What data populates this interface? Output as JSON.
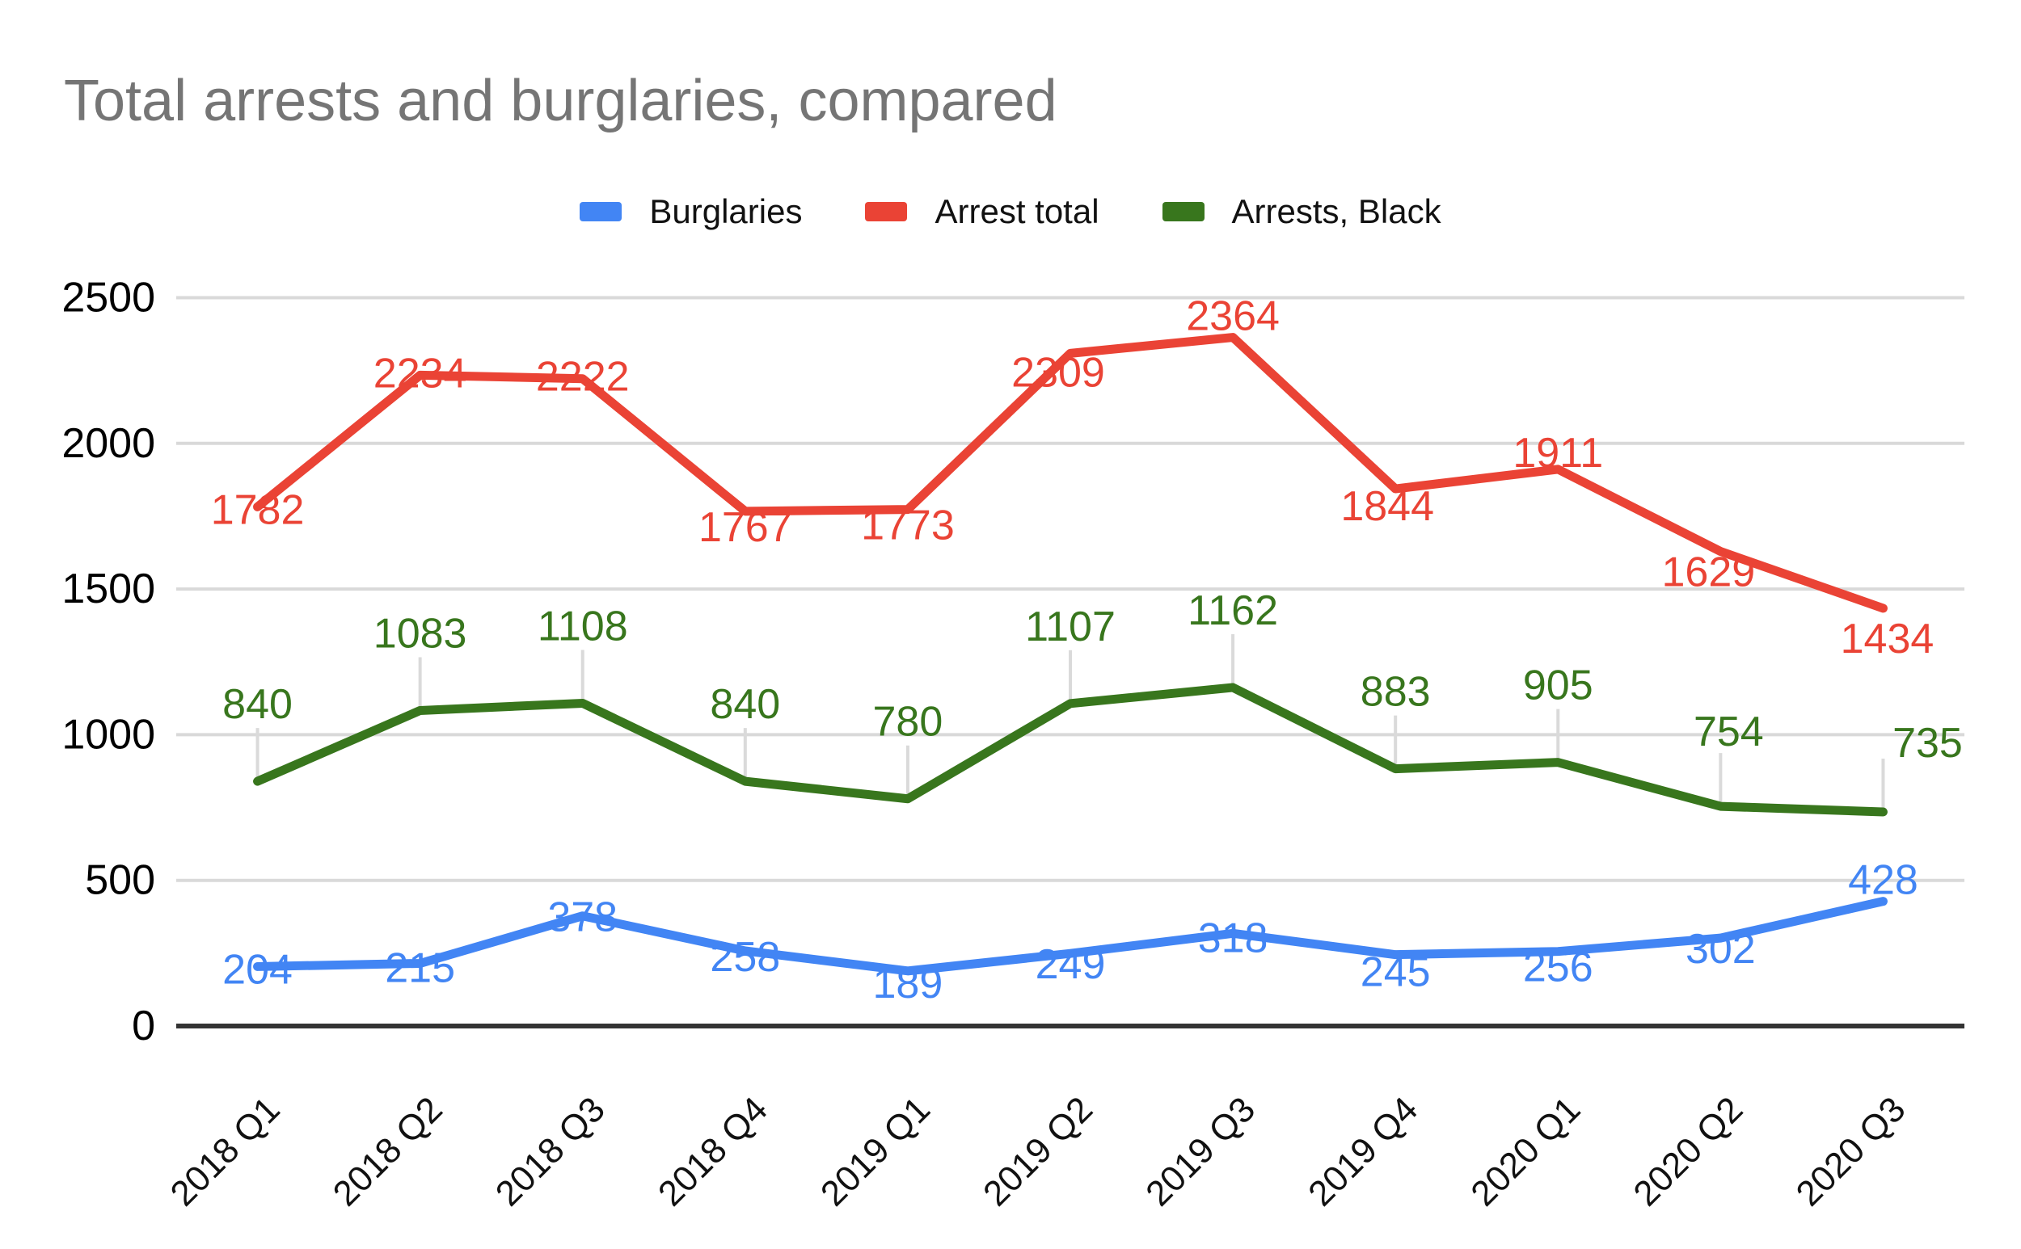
{
  "page": {
    "background": "#ffffff"
  },
  "chart_data": {
    "type": "line",
    "title": "Total arrests and burglaries, compared",
    "title_color": "#757575",
    "categories": [
      "2018 Q1",
      "2018 Q2",
      "2018 Q3",
      "2018 Q4",
      "2019 Q1",
      "2019 Q2",
      "2019 Q3",
      "2019 Q4",
      "2020 Q1",
      "2020 Q2",
      "2020 Q3"
    ],
    "series": [
      {
        "name": "Burglaries",
        "color": "#4285f4",
        "values": [
          204,
          215,
          378,
          258,
          189,
          249,
          318,
          245,
          256,
          302,
          428
        ],
        "leader_lines": false,
        "label_offsets": [
          [
            0,
            4
          ],
          [
            0,
            6
          ],
          [
            0,
            2
          ],
          [
            0,
            8
          ],
          [
            0,
            16
          ],
          [
            0,
            14
          ],
          [
            0,
            6
          ],
          [
            0,
            22
          ],
          [
            0,
            20
          ],
          [
            0,
            14
          ],
          [
            0,
            -26
          ]
        ]
      },
      {
        "name": "Arrest total",
        "color": "#ea4335",
        "values": [
          1782,
          2234,
          2222,
          1767,
          1773,
          2309,
          2364,
          1844,
          1911,
          1629,
          1434
        ],
        "leader_lines": false,
        "label_offsets": [
          [
            0,
            4
          ],
          [
            0,
            -2
          ],
          [
            0,
            -2
          ],
          [
            0,
            20
          ],
          [
            0,
            20
          ],
          [
            -15,
            24
          ],
          [
            0,
            -26
          ],
          [
            -10,
            22
          ],
          [
            0,
            -20
          ],
          [
            -15,
            26
          ],
          [
            5,
            38
          ]
        ]
      },
      {
        "name": "Arrests, Black",
        "color": "#38761d",
        "values": [
          840,
          1083,
          1108,
          840,
          780,
          1107,
          1162,
          883,
          905,
          754,
          735
        ],
        "leader_lines": true,
        "label_offsets": [
          [
            0,
            -95
          ],
          [
            0,
            -95
          ],
          [
            0,
            -95
          ],
          [
            0,
            -95
          ],
          [
            0,
            -95
          ],
          [
            0,
            -95
          ],
          [
            0,
            -95
          ],
          [
            0,
            -95
          ],
          [
            0,
            -95
          ],
          [
            10,
            -92
          ],
          [
            55,
            -85
          ]
        ]
      }
    ],
    "y_ticks": [
      0,
      500,
      1000,
      1500,
      2000,
      2500
    ],
    "ylim": [
      0,
      2500
    ],
    "xlabel": "",
    "ylabel": "",
    "grid_on": true,
    "grid_color": "#d9d9d9",
    "zero_axis_color": "#333333",
    "leader_color": "#dadada",
    "tick_label_color": "#000000",
    "x_label_color": "#111111",
    "legend_position": "top-center"
  }
}
